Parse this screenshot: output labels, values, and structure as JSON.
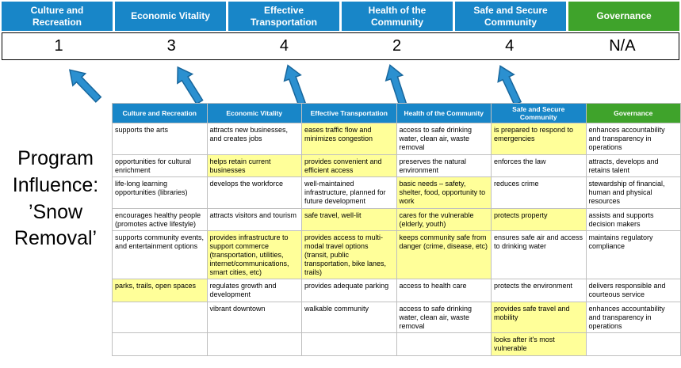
{
  "title": {
    "lines": [
      "Program",
      "Influence:",
      "’Snow",
      "Removal’"
    ]
  },
  "colors": {
    "pillar_blue": "#1886c8",
    "governance_green": "#3fa32b",
    "highlight_yellow": "#ffff99",
    "arrow_blue": "#2b90d0",
    "grid_gray": "#bfbfbf"
  },
  "pillars": [
    {
      "name": "Culture and Recreation",
      "score": "1"
    },
    {
      "name": "Economic Vitality",
      "score": "3"
    },
    {
      "name": "Effective Transportation",
      "score": "4"
    },
    {
      "name": "Health of the Community",
      "score": "2"
    },
    {
      "name": "Safe and Secure Community",
      "score": "4"
    },
    {
      "name": "Governance",
      "score": "N/A"
    }
  ],
  "matrix": {
    "rows": [
      [
        {
          "text": "supports the arts",
          "hl": false
        },
        {
          "text": "attracts new businesses, and creates jobs",
          "hl": false
        },
        {
          "text": "eases traffic flow and minimizes congestion",
          "hl": true
        },
        {
          "text": "access to safe drinking water, clean air, waste removal",
          "hl": false
        },
        {
          "text": "is prepared to respond to emergencies",
          "hl": true
        },
        {
          "text": "enhances accountability and transparency in operations",
          "hl": false
        }
      ],
      [
        {
          "text": "opportunities for cultural enrichment",
          "hl": false
        },
        {
          "text": "helps retain current businesses",
          "hl": true
        },
        {
          "text": "provides convenient and efficient access",
          "hl": true
        },
        {
          "text": "preserves the natural environment",
          "hl": false
        },
        {
          "text": "enforces the law",
          "hl": false
        },
        {
          "text": "attracts, develops and retains talent",
          "hl": false
        }
      ],
      [
        {
          "text": "life-long learning opportunities (libraries)",
          "hl": false
        },
        {
          "text": "develops the workforce",
          "hl": false
        },
        {
          "text": "well-maintained infrastructure, planned for future development",
          "hl": false
        },
        {
          "text": "basic needs – safety, shelter, food, opportunity to work",
          "hl": true
        },
        {
          "text": "reduces crime",
          "hl": false
        },
        {
          "text": "stewardship of financial, human and physical resources",
          "hl": false
        }
      ],
      [
        {
          "text": "encourages healthy people (promotes active lifestyle)",
          "hl": false
        },
        {
          "text": "attracts visitors and tourism",
          "hl": false
        },
        {
          "text": "safe travel, well-lit",
          "hl": true
        },
        {
          "text": "cares for the vulnerable (elderly, youth)",
          "hl": true
        },
        {
          "text": "protects property",
          "hl": true
        },
        {
          "text": "assists and supports decision makers",
          "hl": false
        }
      ],
      [
        {
          "text": "supports community events, and entertainment options",
          "hl": false
        },
        {
          "text": "provides infrastructure to support commerce (transportation, utilities, internet/communications, smart cities, etc)",
          "hl": true
        },
        {
          "text": "provides access to multi-modal travel options (transit, public transportation, bike lanes, trails)",
          "hl": true
        },
        {
          "text": "keeps community safe from danger (crime, disease, etc)",
          "hl": true
        },
        {
          "text": "ensures safe air and access to drinking water",
          "hl": false
        },
        {
          "text": "maintains regulatory compliance",
          "hl": false
        }
      ],
      [
        {
          "text": "parks, trails, open spaces",
          "hl": true
        },
        {
          "text": "regulates growth and development",
          "hl": false
        },
        {
          "text": "provides adequate parking",
          "hl": false
        },
        {
          "text": "access to health care",
          "hl": false
        },
        {
          "text": "protects the environment",
          "hl": false
        },
        {
          "text": "delivers responsible and courteous service",
          "hl": false
        }
      ],
      [
        {
          "text": "",
          "hl": false
        },
        {
          "text": "vibrant downtown",
          "hl": false
        },
        {
          "text": "walkable community",
          "hl": false
        },
        {
          "text": "access to safe drinking water, clean air, waste removal",
          "hl": false
        },
        {
          "text": "provides safe travel and mobility",
          "hl": true
        },
        {
          "text": "enhances accountability and transparency in operations",
          "hl": false
        }
      ],
      [
        {
          "text": "",
          "hl": false
        },
        {
          "text": "",
          "hl": false
        },
        {
          "text": "",
          "hl": false
        },
        {
          "text": "",
          "hl": false
        },
        {
          "text": "looks after it's most vulnerable",
          "hl": true
        },
        {
          "text": "",
          "hl": false
        }
      ]
    ]
  }
}
